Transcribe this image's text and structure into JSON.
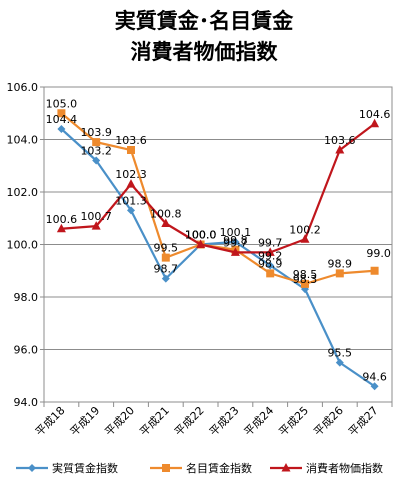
{
  "chart_data": {
    "type": "line",
    "title_lines": [
      "実質賃金･名目賃金",
      "消費者物価指数"
    ],
    "xlabel": "",
    "ylabel": "",
    "categories": [
      "平成18",
      "平成19",
      "平成20",
      "平成21",
      "平成22",
      "平成23",
      "平成24",
      "平成25",
      "平成26",
      "平成27"
    ],
    "ylim": [
      94.0,
      106.0
    ],
    "yticks": [
      "94.0",
      "96.0",
      "98.0",
      "100.0",
      "102.0",
      "104.0",
      "106.0"
    ],
    "grid": true,
    "legend_position": "bottom",
    "series": [
      {
        "name": "実質賃金指数",
        "color": "#4a90c8",
        "marker": "diamond",
        "values": [
          104.4,
          103.2,
          101.3,
          98.7,
          100.0,
          100.1,
          99.2,
          98.3,
          95.5,
          94.6
        ],
        "labels": [
          "104.4",
          "103.2",
          "101.3",
          "98.7",
          "100.0",
          "100.1",
          "99.2",
          "98.3",
          "95.5",
          "94.6"
        ]
      },
      {
        "name": "名目賃金指数",
        "color": "#ee8a2d",
        "marker": "square",
        "values": [
          105.0,
          103.9,
          103.6,
          99.5,
          100.0,
          99.8,
          98.9,
          98.5,
          98.9,
          99.0
        ],
        "labels": [
          "105.0",
          "103.9",
          "103.6",
          "99.5",
          "100.0",
          "99.8",
          "98.9",
          "98.5",
          "98.9",
          "99.0"
        ]
      },
      {
        "name": "消費者物価指数",
        "color": "#c0161c",
        "marker": "triangle",
        "values": [
          100.6,
          100.7,
          102.3,
          100.8,
          100.0,
          99.7,
          99.7,
          100.2,
          103.6,
          104.6
        ],
        "labels": [
          "100.6",
          "100.7",
          "102.3",
          "100.8",
          "100.0",
          "99.7",
          "99.7",
          "100.2",
          "103.6",
          "104.6"
        ]
      }
    ]
  }
}
